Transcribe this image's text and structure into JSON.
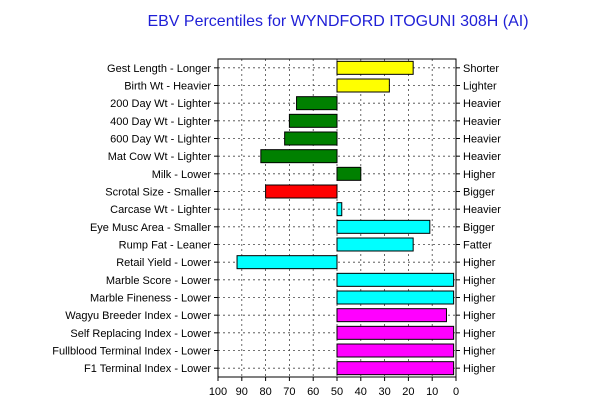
{
  "chart_data": {
    "type": "bar",
    "orientation": "horizontal",
    "title": "EBV Percentiles for WYNDFORD ITOGUNI 308H (AI)",
    "xlabel": "",
    "ylabel": "",
    "xlim": [
      100,
      0
    ],
    "x_ticks": [
      "100",
      "90",
      "80",
      "70",
      "60",
      "50",
      "40",
      "30",
      "20",
      "10",
      "0"
    ],
    "baseline": 50,
    "grid": true,
    "categories": [
      "Gest Length - Longer",
      "Birth Wt - Heavier",
      "200 Day Wt - Lighter",
      "400 Day Wt - Lighter",
      "600 Day Wt - Lighter",
      "Mat Cow Wt - Lighter",
      "Milk - Lower",
      "Scrotal Size - Smaller",
      "Carcase Wt - Lighter",
      "Eye Musc Area - Smaller",
      "Rump Fat - Leaner",
      "Retail Yield - Lower",
      "Marble Score - Lower",
      "Marble Fineness - Lower",
      "Wagyu Breeder Index - Lower",
      "Self Replacing Index - Lower",
      "Fullblood Terminal Index - Lower",
      "F1 Terminal Index - Lower"
    ],
    "right_labels": [
      "Shorter",
      "Lighter",
      "Heavier",
      "Heavier",
      "Heavier",
      "Heavier",
      "Higher",
      "Bigger",
      "Heavier",
      "Bigger",
      "Fatter",
      "Higher",
      "Higher",
      "Higher",
      "Higher",
      "Higher",
      "Higher",
      "Higher"
    ],
    "values": [
      18,
      28,
      67,
      70,
      72,
      82,
      40,
      80,
      48,
      11,
      18,
      92,
      1,
      1,
      4,
      1,
      1,
      1
    ],
    "colors": [
      "#ffff00",
      "#ffff00",
      "#008000",
      "#008000",
      "#008000",
      "#008000",
      "#008000",
      "#ff0000",
      "#00ffff",
      "#00ffff",
      "#00ffff",
      "#00ffff",
      "#00ffff",
      "#00ffff",
      "#ff00ff",
      "#ff00ff",
      "#ff00ff",
      "#ff00ff"
    ]
  }
}
